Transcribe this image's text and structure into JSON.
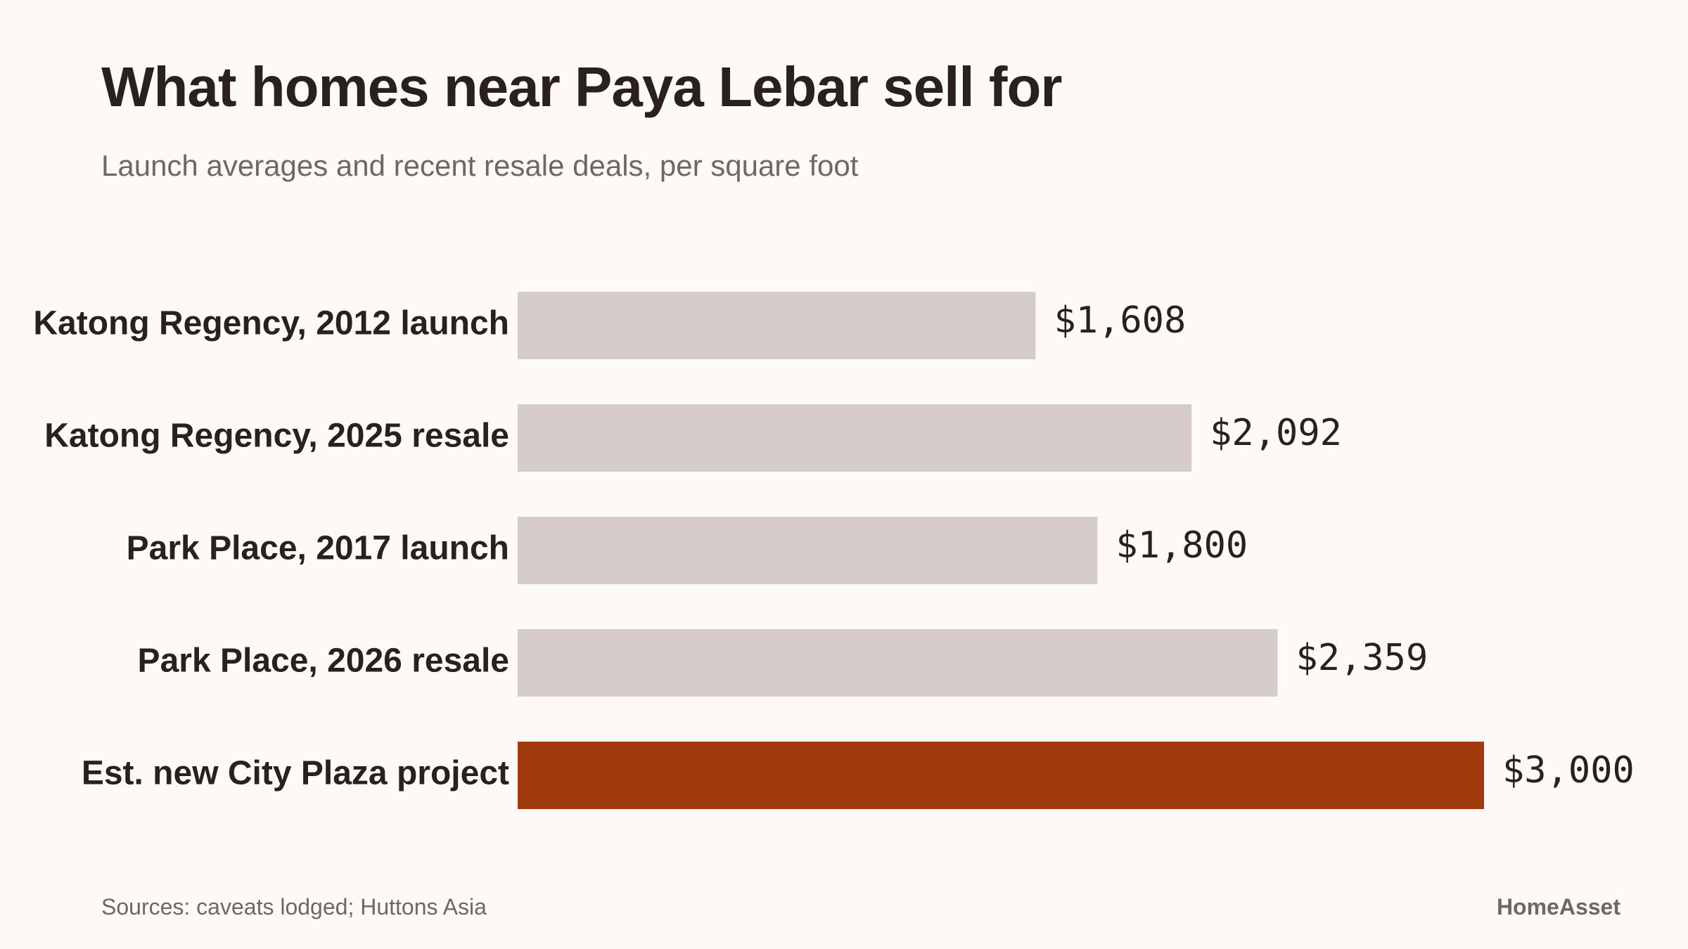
{
  "header": {
    "title": "What homes near Paya Lebar sell for",
    "subtitle": "Launch averages and recent resale deals, per square foot"
  },
  "footer": {
    "source": "Sources: caveats lodged; Huttons Asia",
    "brand": "HomeAsset"
  },
  "colors": {
    "background": "#fdf9f7",
    "bar_default": "#d6ccc9",
    "bar_highlight": "#a33a0e",
    "text": "#2a211f",
    "muted_text": "#6e6765"
  },
  "chart_data": {
    "type": "bar",
    "orientation": "horizontal",
    "title": "What homes near Paya Lebar sell for",
    "subtitle": "Launch averages and recent resale deals, per square foot",
    "categories": [
      "Katong Regency, 2012 launch",
      "Katong Regency, 2025 resale",
      "Park Place, 2017 launch",
      "Park Place, 2026 resale",
      "Est. new City Plaza project"
    ],
    "values": [
      1608,
      2092,
      1800,
      2359,
      3000
    ],
    "value_labels": [
      "$1,608",
      "$2,092",
      "$1,800",
      "$2,359",
      "$3,000"
    ],
    "highlight": [
      false,
      false,
      false,
      false,
      true
    ],
    "xlim": [
      0,
      3000
    ],
    "grid": false,
    "legend": "none"
  }
}
